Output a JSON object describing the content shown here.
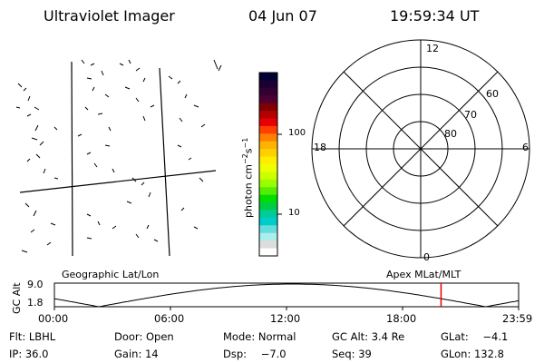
{
  "header": {
    "title": "Ultraviolet Imager",
    "date": "04 Jun 07",
    "time": "19:59:34 UT"
  },
  "colorbar": {
    "unit_label": "photon cm",
    "unit_sup1": "−2",
    "unit_mid": "s",
    "unit_sup2": "−1",
    "tick_100": "100",
    "tick_10": "10",
    "colors": [
      "#000033",
      "#1a0033",
      "#330033",
      "#4d0033",
      "#800000",
      "#b30000",
      "#e60000",
      "#ff4000",
      "#ff8000",
      "#ffb300",
      "#ffd000",
      "#ffee00",
      "#eeff00",
      "#ccff00",
      "#99ff00",
      "#55ee00",
      "#00dd00",
      "#00cc44",
      "#00cc99",
      "#00cccc",
      "#66dddd",
      "#aaeeee",
      "#dddddd",
      "#ffffff"
    ]
  },
  "polar": {
    "labels": {
      "top": "12",
      "bottom": "0",
      "left": "18",
      "right": "6",
      "lat60": "60",
      "lat70": "70",
      "lat80": "80"
    }
  },
  "timeline": {
    "left_label": "Geographic Lat/Lon",
    "right_label": "Apex MLat/MLT",
    "y_axis_label": "GC Alt",
    "y_max": "9.0",
    "y_min": "1.8",
    "x_ticks": [
      "00:00",
      "06:00",
      "12:00",
      "18:00",
      "23:59"
    ],
    "marker_color": "#e00000",
    "marker_time_hours": 19.99
  },
  "info": {
    "filter_label": "Flt:",
    "filter_value": "LBHL",
    "door_label": "Door:",
    "door_value": "Open",
    "mode_label": "Mode:",
    "mode_value": "Normal",
    "gcalt_label": "GC Alt:",
    "gcalt_value": "3.4 Re",
    "glat_label": "GLat:",
    "glat_value": "−4.1",
    "ip_label": "IP:",
    "ip_value": "36.0",
    "gain_label": "Gain:",
    "gain_value": "14",
    "dsp_label": "Dsp:",
    "dsp_value": "−7.0",
    "seq_label": "Seq:",
    "seq_value": "39",
    "glon_label": "GLon:",
    "glon_value": "132.8"
  }
}
